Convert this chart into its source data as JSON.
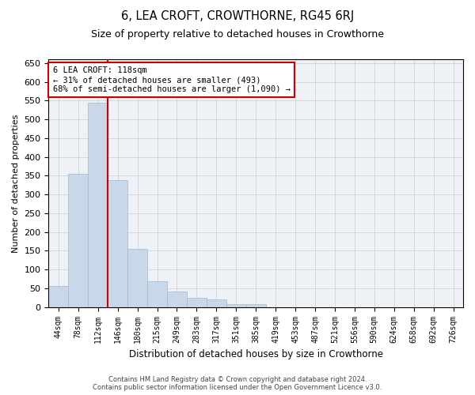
{
  "title": "6, LEA CROFT, CROWTHORNE, RG45 6RJ",
  "subtitle": "Size of property relative to detached houses in Crowthorne",
  "xlabel": "Distribution of detached houses by size in Crowthorne",
  "ylabel": "Number of detached properties",
  "bin_labels": [
    "44sqm",
    "78sqm",
    "112sqm",
    "146sqm",
    "180sqm",
    "215sqm",
    "249sqm",
    "283sqm",
    "317sqm",
    "351sqm",
    "385sqm",
    "419sqm",
    "453sqm",
    "487sqm",
    "521sqm",
    "556sqm",
    "590sqm",
    "624sqm",
    "658sqm",
    "692sqm",
    "726sqm"
  ],
  "bar_values": [
    57,
    355,
    545,
    338,
    155,
    68,
    42,
    25,
    20,
    8,
    8,
    0,
    0,
    0,
    0,
    0,
    0,
    0,
    0,
    0,
    0
  ],
  "bar_color": "#c8d8e8",
  "bar_edge_color": "#a0b8cc",
  "property_line_color": "#cc0000",
  "annotation_line1": "6 LEA CROFT: 118sqm",
  "annotation_line2": "← 31% of detached houses are smaller (493)",
  "annotation_line3": "68% of semi-detached houses are larger (1,090) →",
  "annotation_box_color": "#cc0000",
  "ylim": [
    0,
    660
  ],
  "yticks": [
    0,
    50,
    100,
    150,
    200,
    250,
    300,
    350,
    400,
    450,
    500,
    550,
    600,
    650
  ],
  "grid_color": "#cccccc",
  "background_color": "#eef2f7",
  "footer_line1": "Contains HM Land Registry data © Crown copyright and database right 2024.",
  "footer_line2": "Contains public sector information licensed under the Open Government Licence v3.0."
}
